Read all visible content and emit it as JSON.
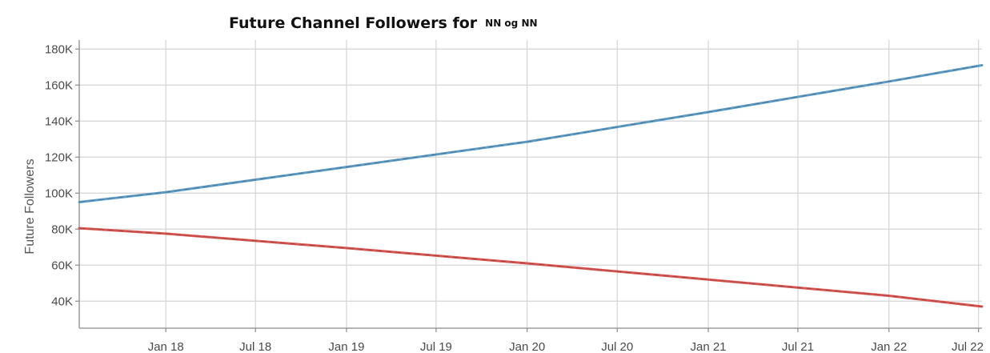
{
  "chart_data": {
    "type": "line",
    "title": "Future Channel Followers for",
    "title_name": "NN og NN",
    "xlabel": "",
    "ylabel": "Future Followers",
    "x_tick_labels": [
      "Jan 18",
      "Jul 18",
      "Jan 19",
      "Jul 19",
      "Jan 20",
      "Jul 20",
      "Jan 21",
      "Jul 21",
      "Jan 22",
      "Jul 22"
    ],
    "x_tick_dates": [
      "2018-01-01",
      "2018-07-01",
      "2019-01-01",
      "2019-07-01",
      "2020-01-01",
      "2020-07-01",
      "2021-01-01",
      "2021-07-01",
      "2022-01-01",
      "2022-07-01"
    ],
    "xlim": [
      "2017-07-10",
      "2022-07-08"
    ],
    "ylim": [
      25000,
      185000
    ],
    "y_ticks": [
      40000,
      60000,
      80000,
      100000,
      120000,
      140000,
      160000,
      180000
    ],
    "y_tick_labels": [
      "40K",
      "60K",
      "80K",
      "100K",
      "120K",
      "140K",
      "160K",
      "180K"
    ],
    "grid": true,
    "series": [
      {
        "color": "#5b9bc7",
        "x": [
          "2017-07-10",
          "2018-01-01",
          "2019-01-01",
          "2020-01-01",
          "2021-01-01",
          "2022-01-01",
          "2022-07-08"
        ],
        "values": [
          95000,
          100500,
          114500,
          128500,
          145000,
          162000,
          171000
        ]
      },
      {
        "color": "#d9534f",
        "x": [
          "2017-07-10",
          "2018-01-01",
          "2019-01-01",
          "2020-01-01",
          "2021-01-01",
          "2022-01-01",
          "2022-07-08"
        ],
        "values": [
          80500,
          77500,
          69500,
          61000,
          52000,
          43000,
          37000
        ]
      }
    ]
  }
}
